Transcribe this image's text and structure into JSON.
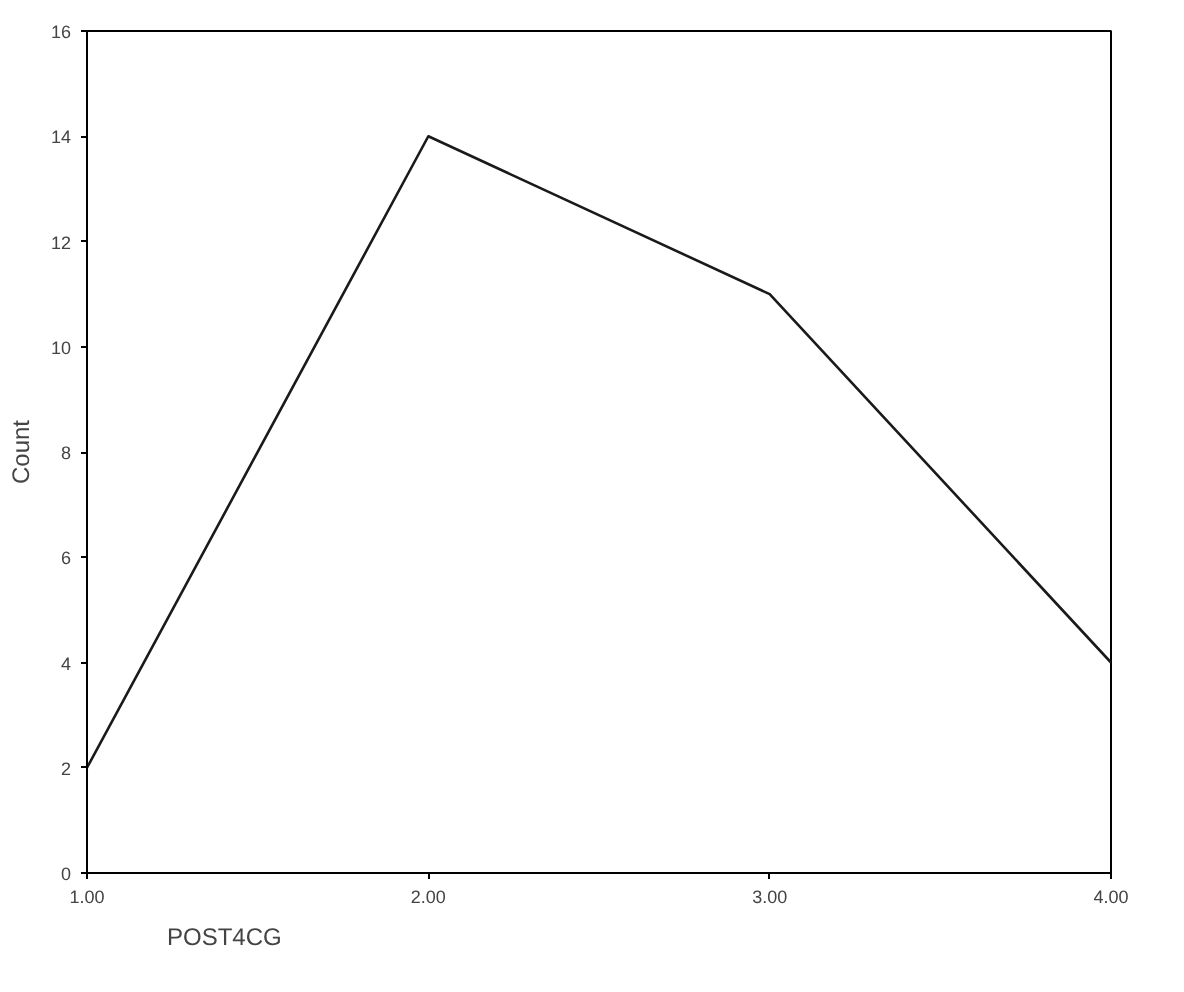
{
  "chart_data": {
    "type": "line",
    "categories": [
      "1.00",
      "2.00",
      "3.00",
      "4.00"
    ],
    "values": [
      2,
      14,
      11,
      4
    ],
    "color": "#1a1a1a",
    "ylim": [
      0,
      16
    ],
    "yticks": [
      0,
      2,
      4,
      6,
      8,
      10,
      12,
      14,
      16
    ],
    "ylabel": "Count",
    "xlabel": "POST4CG",
    "line_style": "solid"
  }
}
